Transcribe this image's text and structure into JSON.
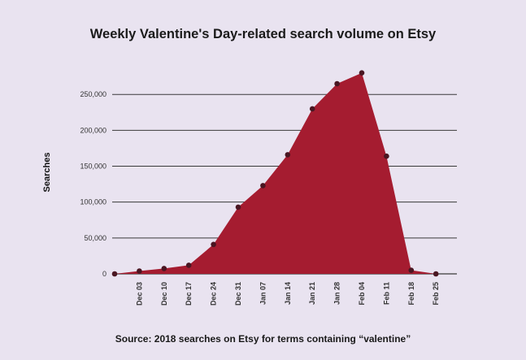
{
  "chart_data": {
    "type": "area",
    "title": "Weekly Valentine's Day-related search volume on Etsy",
    "source": "Source: 2018 searches on Etsy for terms containing “valentine”",
    "ylabel": "Searches",
    "xlabel": "",
    "categories": [
      "",
      "Dec 03",
      "Dec 10",
      "Dec 17",
      "Dec 24",
      "Dec 31",
      "Jan 07",
      "Jan 14",
      "Jan 21",
      "Jan 28",
      "Feb 04",
      "Feb 11",
      "Feb 18",
      "Feb 25"
    ],
    "series": [
      {
        "values": [
          0,
          4000,
          7500,
          12000,
          41000,
          93000,
          123000,
          166000,
          230000,
          265000,
          280000,
          164000,
          5000,
          0
        ]
      }
    ],
    "yticks": [
      0,
      50000,
      100000,
      150000,
      200000,
      250000
    ],
    "ytick_labels": [
      "0",
      "50,000",
      "100,000",
      "150,000",
      "200,000",
      "250,000"
    ],
    "ylim": [
      0,
      280000
    ],
    "grid": true,
    "legend": "none",
    "colors": {
      "area": "#a51c30",
      "marker": "#4a1622",
      "grid": "#3a3a3a",
      "background": "#e9e3f0"
    }
  }
}
